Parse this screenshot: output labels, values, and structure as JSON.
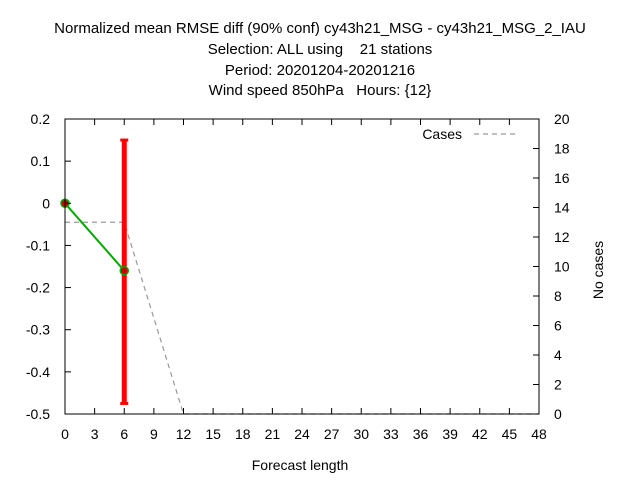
{
  "chart_data": {
    "type": "line",
    "title_lines": [
      "Normalized mean RMSE diff (90% conf) cy43h21_MSG - cy43h21_MSG_2_IAU",
      "Selection: ALL using    21 stations",
      "Period: 20201204-20201216",
      "Wind speed 850hPa   Hours: {12}"
    ],
    "xlabel": "Forecast length",
    "ylabel": "",
    "y2label": "No cases",
    "xlim": [
      0,
      48
    ],
    "ylim": [
      -0.5,
      0.2
    ],
    "y2lim": [
      0,
      20
    ],
    "x_ticks": [
      0,
      3,
      6,
      9,
      12,
      15,
      18,
      21,
      24,
      27,
      30,
      33,
      36,
      39,
      42,
      45,
      48
    ],
    "y_ticks": [
      "0.2",
      "0.1",
      "0",
      "-0.1",
      "-0.2",
      "-0.3",
      "-0.4",
      "-0.5"
    ],
    "y2_ticks": [
      "20",
      "18",
      "16",
      "14",
      "12",
      "10",
      "8",
      "6",
      "4",
      "2",
      "0"
    ],
    "legend_position": "top-right",
    "series": [
      {
        "kind": "line",
        "color": "#00aa00",
        "marker_color": "#cc0000",
        "x": [
          0,
          6
        ],
        "y": [
          0.0,
          -0.16
        ]
      },
      {
        "kind": "errorbar",
        "color": "#ff0000",
        "x": [
          6
        ],
        "low": [
          -0.475
        ],
        "high": [
          0.15
        ]
      },
      {
        "name": "Cases",
        "kind": "dashed",
        "axis": "y2",
        "color": "#999999",
        "x": [
          0,
          6,
          12,
          48
        ],
        "y": [
          13,
          13,
          0,
          0
        ]
      }
    ]
  }
}
